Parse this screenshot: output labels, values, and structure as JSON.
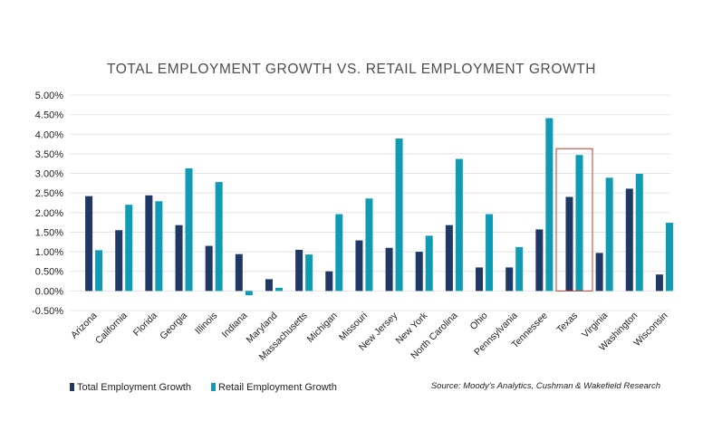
{
  "colors": {
    "total": "#1f3864",
    "retail": "#0f9bb4",
    "highlight": "#c0392b"
  },
  "chart_data": {
    "type": "bar",
    "title": "TOTAL EMPLOYMENT GROWTH VS. RETAIL EMPLOYMENT GROWTH",
    "categories": [
      "Arizona",
      "California",
      "Florida",
      "Georgia",
      "Illinois",
      "Indiana",
      "Maryland",
      "Massachusetts",
      "Michigan",
      "Missouri",
      "New Jersey",
      "New York",
      "North Carolina",
      "Ohio",
      "Pennsylvania",
      "Tennessee",
      "Texas",
      "Virginia",
      "Washington",
      "Wisconsin"
    ],
    "series": [
      {
        "name": "Total Employment Growth",
        "values": [
          2.42,
          1.55,
          2.44,
          1.68,
          1.15,
          0.94,
          0.3,
          1.05,
          0.5,
          1.29,
          1.1,
          1.0,
          1.68,
          0.6,
          0.6,
          1.57,
          2.4,
          0.97,
          2.61,
          0.42
        ]
      },
      {
        "name": "Retail Employment Growth",
        "values": [
          1.04,
          2.2,
          2.29,
          3.13,
          2.78,
          -0.11,
          0.08,
          0.93,
          1.96,
          2.36,
          3.89,
          1.41,
          3.37,
          1.96,
          1.12,
          4.41,
          3.47,
          2.89,
          2.99,
          1.74
        ]
      }
    ],
    "ylim": [
      -0.5,
      5.0
    ],
    "yticks": [
      "-0.50%",
      "0.00%",
      "0.50%",
      "1.00%",
      "1.50%",
      "2.00%",
      "2.50%",
      "3.00%",
      "3.50%",
      "4.00%",
      "4.50%",
      "5.00%"
    ],
    "highlighted_category": "Texas",
    "grid": true,
    "legend_position": "bottom-left",
    "source": "Source: Moody's Analytics, Cushman & Wakefield Research"
  }
}
